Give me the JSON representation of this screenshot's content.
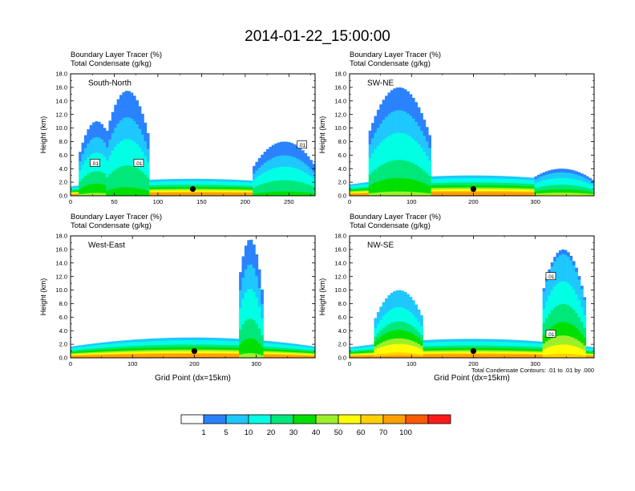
{
  "title": "2014-01-22_15:00:00",
  "panel_title_line1": "Boundary Layer Tracer   (%)",
  "panel_title_line2": "Total Condensate   (g/kg)",
  "colors": {
    "levels": [
      "#ffffff",
      "#2a82ff",
      "#1ec8ff",
      "#00ffe4",
      "#00e87a",
      "#00e000",
      "#9cf02a",
      "#ffff00",
      "#ffd000",
      "#ffa000",
      "#ff5a00",
      "#ff1a1a"
    ],
    "bounds": [
      1,
      5,
      10,
      20,
      30,
      40,
      50,
      60,
      70,
      100
    ]
  },
  "chart_data": [
    {
      "type": "heatmap",
      "panel_label": "South-North",
      "x_ticks": [
        0,
        50,
        100,
        150,
        200,
        250
      ],
      "x_max": 280,
      "y_ticks": [
        "0.0",
        "2.0",
        "4.0",
        "6.0",
        "8.0",
        "10.0",
        "12.0",
        "14.0",
        "16.0",
        "18.0"
      ],
      "ylim": [
        0,
        18
      ],
      "ylabel": "Height (km)",
      "xlabel": "",
      "contour_labels": [
        {
          "x": 28,
          "y": 4.8,
          "text": ".01"
        },
        {
          "x": 78,
          "y": 4.8,
          "text": ".01"
        },
        {
          "x": 265,
          "y": 7.5,
          "text": ".01"
        }
      ],
      "marker_x": 140,
      "plumes": [
        {
          "x0": 0,
          "x1": 280,
          "top": 2.5,
          "peak": 100
        },
        {
          "x0": 10,
          "x1": 50,
          "top": 11,
          "peak": 40
        },
        {
          "x0": 40,
          "x1": 90,
          "top": 15.5,
          "peak": 35
        },
        {
          "x0": 210,
          "x1": 280,
          "top": 8,
          "peak": 35
        }
      ]
    },
    {
      "type": "heatmap",
      "panel_label": "SW-NE",
      "x_ticks": [
        0,
        100,
        200,
        300
      ],
      "x_max": 395,
      "y_ticks": [
        "0.0",
        "2.0",
        "4.0",
        "6.0",
        "8.0",
        "10.0",
        "12.0",
        "14.0",
        "16.0",
        "18.0"
      ],
      "ylim": [
        0,
        18
      ],
      "ylabel": "Height (km)",
      "xlabel": "",
      "contour_labels": [],
      "marker_x": 200,
      "plumes": [
        {
          "x0": 0,
          "x1": 395,
          "top": 3,
          "peak": 100
        },
        {
          "x0": 30,
          "x1": 130,
          "top": 16,
          "peak": 40
        },
        {
          "x0": 290,
          "x1": 395,
          "top": 4,
          "peak": 50
        }
      ]
    },
    {
      "type": "heatmap",
      "panel_label": "West-East",
      "x_ticks": [
        0,
        100,
        200,
        300
      ],
      "x_max": 395,
      "y_ticks": [
        "0.0",
        "2.0",
        "4.0",
        "6.0",
        "8.0",
        "10.0",
        "12.0",
        "14.0",
        "16.0",
        "18.0"
      ],
      "ylim": [
        0,
        18
      ],
      "ylabel": "Height (km)",
      "xlabel": "Grid Point (dx=15km)",
      "contour_labels": [],
      "marker_x": 200,
      "plumes": [
        {
          "x0": 0,
          "x1": 395,
          "top": 3,
          "peak": 100
        },
        {
          "x0": 270,
          "x1": 310,
          "top": 17.5,
          "peak": 40
        }
      ]
    },
    {
      "type": "heatmap",
      "panel_label": "NW-SE",
      "x_ticks": [
        0,
        100,
        200,
        300
      ],
      "x_max": 395,
      "y_ticks": [
        "0.0",
        "2.0",
        "4.0",
        "6.0",
        "8.0",
        "10.0",
        "12.0",
        "14.0",
        "16.0",
        "18.0"
      ],
      "ylim": [
        0,
        18
      ],
      "ylabel": "Height (km)",
      "xlabel": "Grid Point (dx=15km)",
      "contour_labels": [
        {
          "x": 325,
          "y": 12,
          "text": ".01"
        },
        {
          "x": 325,
          "y": 3.5,
          "text": ".01"
        }
      ],
      "marker_x": 200,
      "footnote": "Total Condensate Contours: .01 to .01 by .000",
      "plumes": [
        {
          "x0": 0,
          "x1": 395,
          "top": 2.8,
          "peak": 100
        },
        {
          "x0": 40,
          "x1": 120,
          "top": 10,
          "peak": 70
        },
        {
          "x0": 310,
          "x1": 380,
          "top": 16,
          "peak": 60
        }
      ]
    }
  ],
  "colorbar": {
    "labels": [
      "1",
      "5",
      "10",
      "20",
      "30",
      "40",
      "50",
      "60",
      "70",
      "100"
    ]
  }
}
